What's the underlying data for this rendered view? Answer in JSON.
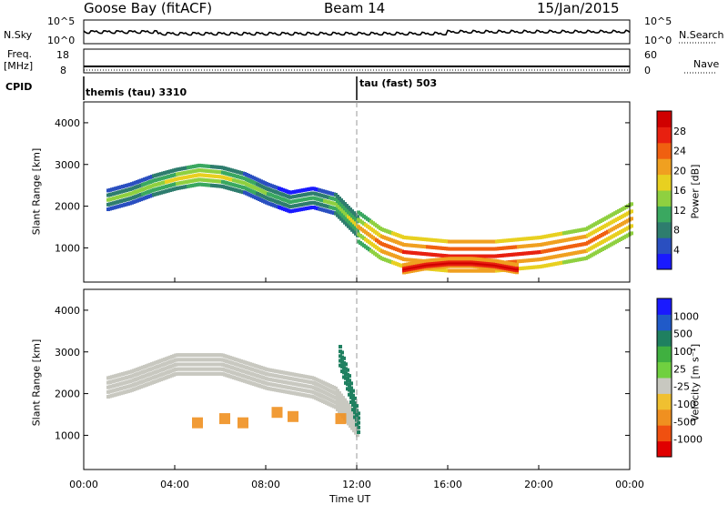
{
  "header": {
    "station": "Goose Bay (fitACF)",
    "beam": "Beam 14",
    "date": "15/Jan/2015"
  },
  "panels": {
    "nsky": {
      "label": "N.Sky",
      "ticks": [
        "10^5",
        "10^0"
      ]
    },
    "nsearch": {
      "label": "N.Search",
      "ticks": [
        "10^5",
        "10^0"
      ]
    },
    "freq": {
      "label_line1": "Freq.",
      "label_line2": "[MHz]",
      "ticks": [
        "18",
        "8"
      ]
    },
    "nave": {
      "label": "Nave",
      "ticks": [
        "60",
        "0"
      ]
    },
    "cpid": {
      "label": "CPID",
      "segments": [
        {
          "name": "themis (tau) 3310",
          "start_ut": "00:00"
        },
        {
          "name": "tau (fast) 503",
          "start_ut": "12:00"
        }
      ]
    }
  },
  "colors": {
    "background": "#ffffff",
    "axis": "#000000",
    "ground_scatter": "#c8c8c0",
    "power_scale": [
      "#1a1aff",
      "#2a4fc0",
      "#2e7d6e",
      "#3aa860",
      "#8fd040",
      "#e8d020",
      "#f0a020",
      "#f06010",
      "#e82010",
      "#d00000"
    ],
    "velocity_scale": [
      "#1a1aff",
      "#205ac8",
      "#1f8060",
      "#40b040",
      "#70d040",
      "#c8c8c0",
      "#f0c030",
      "#f09020",
      "#f05010",
      "#e00000"
    ]
  },
  "chart_data": [
    {
      "type": "heatmap",
      "title": "Power",
      "ylabel": "Slant Range [km]",
      "xlabel": "Time UT",
      "x_ticks": [
        "00:00",
        "04:00",
        "08:00",
        "12:00",
        "16:00",
        "20:00",
        "00:00"
      ],
      "y_ticks": [
        "1000",
        "2000",
        "3000",
        "4000"
      ],
      "ylim": [
        180,
        4500
      ],
      "colorbar": {
        "label": "Power [dB]",
        "ticks": [
          "28",
          "24",
          "20",
          "16",
          "12",
          "8",
          "4"
        ],
        "range": [
          0,
          30
        ]
      },
      "features": [
        {
          "name": "arc band",
          "time_hours": [
            1.0,
            2,
            3,
            4,
            5,
            6,
            7,
            8,
            9,
            10,
            11,
            12
          ],
          "range_km": [
            2150,
            2300,
            2500,
            2650,
            2750,
            2700,
            2550,
            2300,
            2100,
            2200,
            2050,
            1500
          ],
          "power_db": [
            12,
            12,
            14,
            16,
            18,
            16,
            14,
            12,
            10,
            10,
            14,
            16
          ]
        },
        {
          "name": "post-noon U band",
          "time_hours": [
            12,
            13,
            14,
            16,
            18,
            20,
            22,
            24
          ],
          "range_km": [
            1500,
            1100,
            900,
            800,
            800,
            900,
            1100,
            1700
          ],
          "power_db": [
            18,
            22,
            24,
            26,
            26,
            24,
            22,
            20
          ]
        },
        {
          "name": "near-range loop",
          "time_hours": [
            14,
            15,
            16,
            17,
            18,
            19
          ],
          "range_km": [
            500,
            600,
            650,
            650,
            600,
            500
          ],
          "power_db": [
            28,
            28,
            28,
            28,
            28,
            28
          ]
        }
      ]
    },
    {
      "type": "heatmap",
      "title": "Velocity",
      "ylabel": "Slant Range [km]",
      "xlabel": "Time UT",
      "x_ticks": [
        "00:00",
        "04:00",
        "08:00",
        "12:00",
        "16:00",
        "20:00",
        "00:00"
      ],
      "y_ticks": [
        "1000",
        "2000",
        "3000",
        "4000"
      ],
      "ylim": [
        180,
        4500
      ],
      "colorbar": {
        "label": "Velocity [m s⁻¹]",
        "ticks": [
          "1000",
          "500",
          "100",
          "25",
          "-25",
          "-100",
          "-500",
          "-1000"
        ],
        "range": [
          -1000,
          1000
        ]
      },
      "features": [
        {
          "name": "ground scatter arc",
          "time_hours": [
            1.0,
            2,
            4,
            6,
            8,
            10,
            11,
            12
          ],
          "range_km": [
            2150,
            2300,
            2700,
            2700,
            2350,
            2150,
            1900,
            1200
          ],
          "velocity_ms": [
            0,
            0,
            0,
            0,
            0,
            0,
            0,
            0
          ]
        },
        {
          "name": "westward patches",
          "time_hours": [
            5.0,
            6.2,
            7.0,
            8.5,
            9.2,
            11.3
          ],
          "range_km": [
            1300,
            1400,
            1300,
            1550,
            1450,
            1400
          ],
          "velocity_ms": [
            -150,
            -300,
            -350,
            -200,
            -150,
            -250
          ]
        },
        {
          "name": "eastward band",
          "time_hours": [
            11.2,
            11.6,
            12.0
          ],
          "range_km": [
            2900,
            2200,
            1300
          ],
          "velocity_ms": [
            150,
            200,
            150
          ]
        }
      ]
    }
  ]
}
